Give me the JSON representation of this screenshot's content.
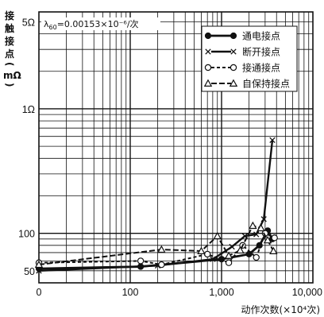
{
  "chart_data": {
    "type": "line",
    "xscale": "log",
    "yscale": "log",
    "x_tick_labels": [
      "0",
      "100",
      "1,000",
      "10,000"
    ],
    "y_tick_labels": [
      "5Ω",
      "1Ω",
      "100",
      "50"
    ],
    "ylabel_chars": [
      "接",
      "触",
      "接",
      "点"
    ],
    "ylabel_unit": "mΩ",
    "xlabel": "动作次数(×10⁴次)",
    "annotation_lambda": "λ",
    "annotation_sub": "60",
    "annotation_text": "=0.00153×10⁻⁶/次",
    "legend_position": "top-right",
    "series": [
      {
        "name": "通电接点",
        "marker": "filled-circle",
        "dash": "solid",
        "width": 2.8,
        "points": [
          [
            10,
            52
          ],
          [
            130,
            54
          ],
          [
            1000,
            62
          ],
          [
            2000,
            68
          ],
          [
            2600,
            80
          ],
          [
            3200,
            105
          ],
          [
            3600,
            90
          ]
        ]
      },
      {
        "name": "断开接点",
        "marker": "x",
        "dash": "solid",
        "width": 2.4,
        "points": [
          [
            10,
            50
          ],
          [
            200,
            55
          ],
          [
            800,
            62
          ],
          [
            1300,
            78
          ],
          [
            1800,
            95
          ],
          [
            2400,
            98
          ],
          [
            2900,
            130
          ],
          [
            3600,
            560
          ]
        ]
      },
      {
        "name": "接通接点",
        "marker": "open-circle",
        "dash": "short-dash",
        "width": 2.0,
        "points": [
          [
            10,
            58
          ],
          [
            130,
            60
          ],
          [
            220,
            56
          ],
          [
            700,
            68
          ],
          [
            1200,
            58
          ],
          [
            1700,
            80
          ],
          [
            2400,
            64
          ],
          [
            3000,
            100
          ],
          [
            3800,
            92
          ]
        ]
      },
      {
        "name": "自保持接点",
        "marker": "triangle",
        "dash": "dash",
        "width": 2.0,
        "points": [
          [
            10,
            56
          ],
          [
            220,
            74
          ],
          [
            600,
            72
          ],
          [
            900,
            95
          ],
          [
            1200,
            66
          ],
          [
            1600,
            73
          ],
          [
            2200,
            115
          ],
          [
            2700,
            110
          ],
          [
            3200,
            88
          ],
          [
            3700,
            72
          ]
        ]
      }
    ]
  }
}
